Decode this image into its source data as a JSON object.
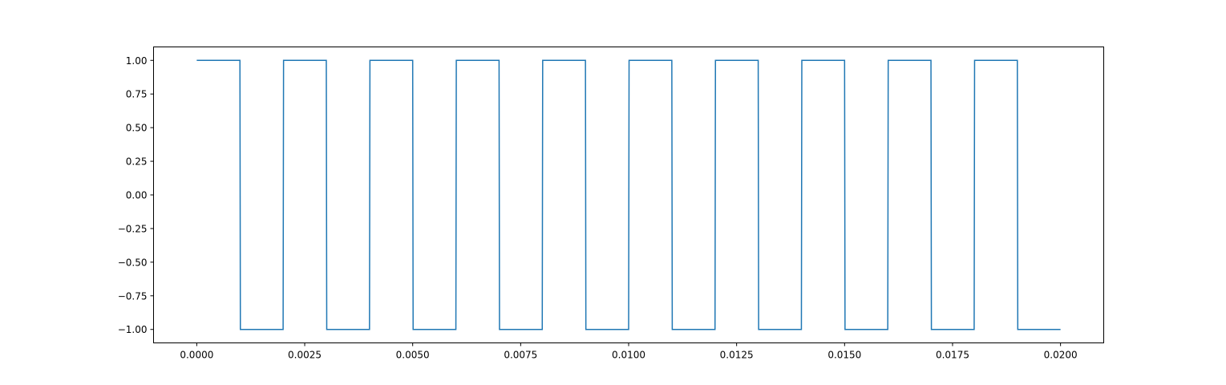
{
  "chart_data": {
    "type": "line",
    "title": "",
    "xlabel": "",
    "ylabel": "",
    "xlim": [
      -0.001,
      0.021
    ],
    "ylim": [
      -1.1,
      1.1
    ],
    "x_ticks": [
      0.0,
      0.0025,
      0.005,
      0.0075,
      0.01,
      0.0125,
      0.015,
      0.0175,
      0.02
    ],
    "x_tick_labels": [
      "0.0000",
      "0.0025",
      "0.0050",
      "0.0075",
      "0.0100",
      "0.0125",
      "0.0150",
      "0.0175",
      "0.0200"
    ],
    "y_ticks": [
      1.0,
      0.75,
      0.5,
      0.25,
      0.0,
      -0.25,
      -0.5,
      -0.75,
      -1.0
    ],
    "y_tick_labels": [
      "1.00",
      "0.75",
      "0.50",
      "0.25",
      "0.00",
      "−0.25",
      "−0.50",
      "−0.75",
      "−1.00"
    ],
    "grid": false,
    "legend": "none",
    "series": [
      {
        "color": "#1f77b4",
        "x": [
          0.0,
          0.001,
          0.00101,
          0.002,
          0.00201,
          0.003,
          0.00301,
          0.004,
          0.00401,
          0.005,
          0.00501,
          0.006,
          0.00601,
          0.007,
          0.00701,
          0.008,
          0.00801,
          0.009,
          0.00901,
          0.01,
          0.01001,
          0.011,
          0.01101,
          0.012,
          0.01201,
          0.013,
          0.01301,
          0.014,
          0.01401,
          0.015,
          0.01501,
          0.016,
          0.01601,
          0.017,
          0.01701,
          0.018,
          0.01801,
          0.019,
          0.01901,
          0.02
        ],
        "y": [
          1,
          1,
          -1,
          -1,
          1,
          1,
          -1,
          -1,
          1,
          1,
          -1,
          -1,
          1,
          1,
          -1,
          -1,
          1,
          1,
          -1,
          -1,
          1,
          1,
          -1,
          -1,
          1,
          1,
          -1,
          -1,
          1,
          1,
          -1,
          -1,
          1,
          1,
          -1,
          -1,
          1,
          1,
          -1,
          -1
        ]
      }
    ]
  }
}
